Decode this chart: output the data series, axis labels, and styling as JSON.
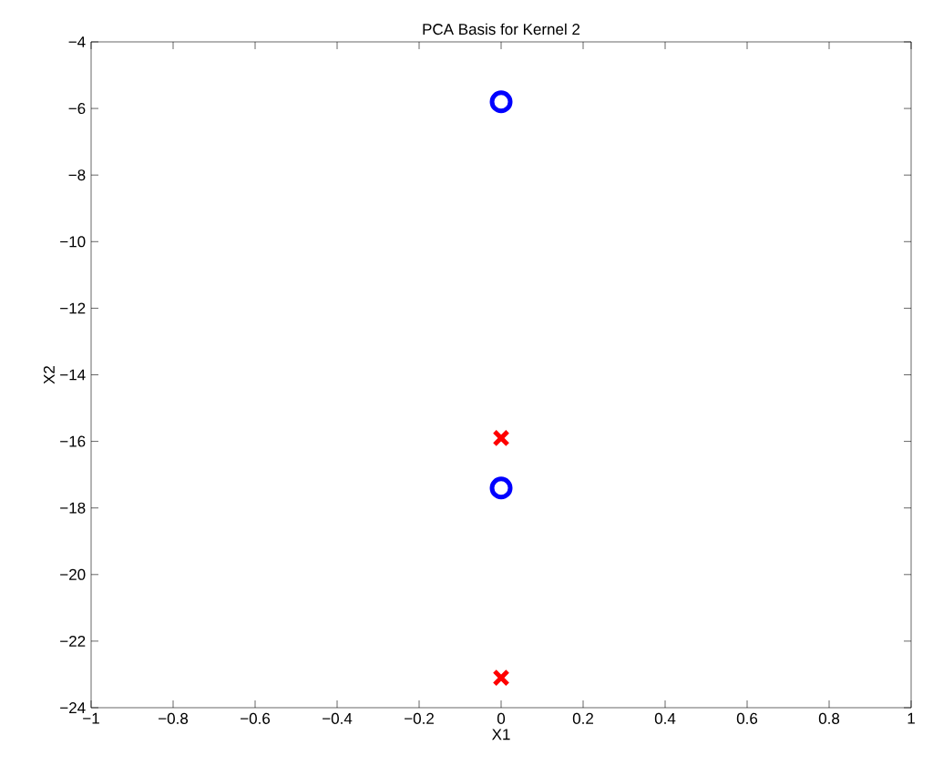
{
  "chart_data": {
    "type": "scatter",
    "title": "PCA Basis for Kernel 2",
    "xlabel": "X1",
    "ylabel": "X2",
    "x": [
      0,
      0
    ],
    "series": [
      {
        "color": "#0000ff",
        "marker": "circle",
        "values": [
          -5.8,
          -17.4
        ]
      },
      {
        "color": "#ff0000",
        "marker": "cross",
        "values": [
          -15.9,
          -23.1
        ]
      }
    ],
    "xlim": [
      -1,
      1
    ],
    "ylim": [
      -24,
      -4
    ],
    "xticks": [
      {
        "value": -1,
        "label": "−1"
      },
      {
        "value": -0.8,
        "label": "−0.8"
      },
      {
        "value": -0.6,
        "label": "−0.6"
      },
      {
        "value": -0.4,
        "label": "−0.4"
      },
      {
        "value": -0.2,
        "label": "−0.2"
      },
      0,
      0.2,
      0.4,
      0.6,
      0.8,
      1
    ],
    "yticks": [
      {
        "value": -24,
        "label": "−24"
      },
      {
        "value": -22,
        "label": "−22"
      },
      {
        "value": -20,
        "label": "−20"
      },
      {
        "value": -18,
        "label": "−18"
      },
      {
        "value": -16,
        "label": "−16"
      },
      {
        "value": -14,
        "label": "−14"
      },
      {
        "value": -12,
        "label": "−12"
      },
      {
        "value": -10,
        "label": "−10"
      },
      {
        "value": -8,
        "label": "−8"
      },
      {
        "value": -6,
        "label": "−6"
      },
      {
        "value": -4,
        "label": "−4"
      }
    ],
    "grid": false
  }
}
